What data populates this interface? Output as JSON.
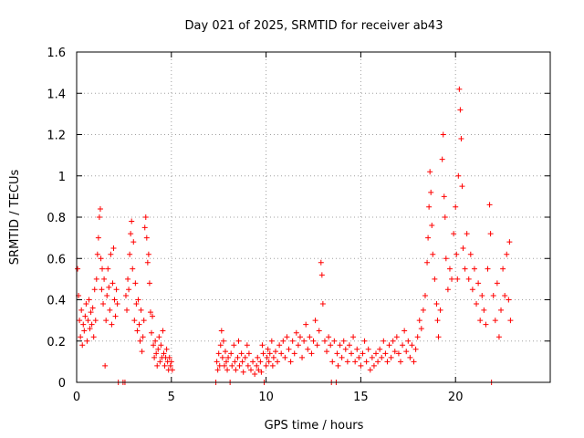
{
  "chart_data": {
    "type": "scatter",
    "title": "Day 021 of 2025, SRMTID for receiver ab43",
    "xlabel": "GPS time / hours",
    "ylabel": "SRMTID / TECUs",
    "xlim": [
      0,
      25
    ],
    "ylim": [
      0,
      1.6
    ],
    "xticks": [
      0,
      5,
      10,
      15,
      20
    ],
    "yticks": [
      0,
      0.2,
      0.4,
      0.6,
      0.8,
      1,
      1.2,
      1.4,
      1.6
    ],
    "ytick_labels": [
      "0",
      "0.2",
      "0.4",
      "0.6",
      "0.8",
      "1",
      "1.2",
      "1.4",
      "1.6"
    ],
    "grid": true,
    "marker": "+",
    "color": "#ff0000",
    "series": [
      {
        "name": "SRMTID",
        "points": [
          [
            0.05,
            0.55
          ],
          [
            0.1,
            0.42
          ],
          [
            0.15,
            0.3
          ],
          [
            0.2,
            0.22
          ],
          [
            0.25,
            0.35
          ],
          [
            0.3,
            0.18
          ],
          [
            0.35,
            0.28
          ],
          [
            0.4,
            0.25
          ],
          [
            0.45,
            0.32
          ],
          [
            0.5,
            0.38
          ],
          [
            0.55,
            0.2
          ],
          [
            0.6,
            0.3
          ],
          [
            0.65,
            0.4
          ],
          [
            0.7,
            0.26
          ],
          [
            0.75,
            0.34
          ],
          [
            0.8,
            0.28
          ],
          [
            0.85,
            0.36
          ],
          [
            0.9,
            0.22
          ],
          [
            0.95,
            0.45
          ],
          [
            1.0,
            0.3
          ],
          [
            1.05,
            0.5
          ],
          [
            1.1,
            0.62
          ],
          [
            1.15,
            0.7
          ],
          [
            1.2,
            0.8
          ],
          [
            1.25,
            0.84
          ],
          [
            1.28,
            0.6
          ],
          [
            1.32,
            0.45
          ],
          [
            1.35,
            0.55
          ],
          [
            1.4,
            0.38
          ],
          [
            1.45,
            0.5
          ],
          [
            1.5,
            0.08
          ],
          [
            1.55,
            0.3
          ],
          [
            1.6,
            0.42
          ],
          [
            1.65,
            0.55
          ],
          [
            1.7,
            0.46
          ],
          [
            1.75,
            0.35
          ],
          [
            1.8,
            0.62
          ],
          [
            1.85,
            0.28
          ],
          [
            1.9,
            0.48
          ],
          [
            1.95,
            0.65
          ],
          [
            2.0,
            0.4
          ],
          [
            2.05,
            0.32
          ],
          [
            2.1,
            0.45
          ],
          [
            2.15,
            0.38
          ],
          [
            2.2,
            0.0
          ],
          [
            2.45,
            0.0
          ],
          [
            2.55,
            0.0
          ],
          [
            2.6,
            0.42
          ],
          [
            2.65,
            0.35
          ],
          [
            2.7,
            0.5
          ],
          [
            2.75,
            0.45
          ],
          [
            2.8,
            0.62
          ],
          [
            2.85,
            0.72
          ],
          [
            2.9,
            0.78
          ],
          [
            2.95,
            0.55
          ],
          [
            3.0,
            0.68
          ],
          [
            3.05,
            0.3
          ],
          [
            3.1,
            0.48
          ],
          [
            3.15,
            0.38
          ],
          [
            3.2,
            0.25
          ],
          [
            3.25,
            0.4
          ],
          [
            3.3,
            0.28
          ],
          [
            3.35,
            0.2
          ],
          [
            3.4,
            0.35
          ],
          [
            3.45,
            0.15
          ],
          [
            3.5,
            0.22
          ],
          [
            3.55,
            0.3
          ],
          [
            3.6,
            0.75
          ],
          [
            3.65,
            0.8
          ],
          [
            3.7,
            0.7
          ],
          [
            3.75,
            0.58
          ],
          [
            3.8,
            0.62
          ],
          [
            3.85,
            0.48
          ],
          [
            3.9,
            0.34
          ],
          [
            3.95,
            0.24
          ],
          [
            4.0,
            0.32
          ],
          [
            4.05,
            0.18
          ],
          [
            4.1,
            0.12
          ],
          [
            4.15,
            0.2
          ],
          [
            4.2,
            0.14
          ],
          [
            4.25,
            0.08
          ],
          [
            4.3,
            0.16
          ],
          [
            4.35,
            0.22
          ],
          [
            4.4,
            0.1
          ],
          [
            4.45,
            0.18
          ],
          [
            4.5,
            0.12
          ],
          [
            4.55,
            0.25
          ],
          [
            4.6,
            0.14
          ],
          [
            4.65,
            0.08
          ],
          [
            4.7,
            0.12
          ],
          [
            4.75,
            0.16
          ],
          [
            4.8,
            0.1
          ],
          [
            4.85,
            0.06
          ],
          [
            4.9,
            0.12
          ],
          [
            4.95,
            0.08
          ],
          [
            5.0,
            0.1
          ],
          [
            5.05,
            0.06
          ],
          [
            7.35,
            0.0
          ],
          [
            7.4,
            0.1
          ],
          [
            7.45,
            0.06
          ],
          [
            7.5,
            0.14
          ],
          [
            7.55,
            0.08
          ],
          [
            7.6,
            0.18
          ],
          [
            7.65,
            0.25
          ],
          [
            7.7,
            0.12
          ],
          [
            7.75,
            0.2
          ],
          [
            7.8,
            0.08
          ],
          [
            7.85,
            0.15
          ],
          [
            7.9,
            0.1
          ],
          [
            7.95,
            0.06
          ],
          [
            8.0,
            0.12
          ],
          [
            8.1,
            0.0
          ],
          [
            8.15,
            0.14
          ],
          [
            8.2,
            0.08
          ],
          [
            8.3,
            0.18
          ],
          [
            8.35,
            0.1
          ],
          [
            8.4,
            0.06
          ],
          [
            8.5,
            0.12
          ],
          [
            8.55,
            0.2
          ],
          [
            8.6,
            0.08
          ],
          [
            8.7,
            0.14
          ],
          [
            8.75,
            0.1
          ],
          [
            8.8,
            0.05
          ],
          [
            8.9,
            0.12
          ],
          [
            9.0,
            0.18
          ],
          [
            9.05,
            0.08
          ],
          [
            9.1,
            0.14
          ],
          [
            9.2,
            0.06
          ],
          [
            9.3,
            0.1
          ],
          [
            9.4,
            0.04
          ],
          [
            9.5,
            0.08
          ],
          [
            9.55,
            0.12
          ],
          [
            9.6,
            0.06
          ],
          [
            9.7,
            0.1
          ],
          [
            9.75,
            0.05
          ],
          [
            9.8,
            0.18
          ],
          [
            9.85,
            0.14
          ],
          [
            9.9,
            0.0
          ],
          [
            10.0,
            0.08
          ],
          [
            10.05,
            0.12
          ],
          [
            10.1,
            0.16
          ],
          [
            10.15,
            0.1
          ],
          [
            10.2,
            0.14
          ],
          [
            10.3,
            0.2
          ],
          [
            10.35,
            0.08
          ],
          [
            10.4,
            0.12
          ],
          [
            10.5,
            0.15
          ],
          [
            10.6,
            0.1
          ],
          [
            10.7,
            0.18
          ],
          [
            10.8,
            0.14
          ],
          [
            10.9,
            0.2
          ],
          [
            11.0,
            0.12
          ],
          [
            11.1,
            0.22
          ],
          [
            11.2,
            0.16
          ],
          [
            11.3,
            0.1
          ],
          [
            11.4,
            0.2
          ],
          [
            11.5,
            0.14
          ],
          [
            11.6,
            0.24
          ],
          [
            11.7,
            0.18
          ],
          [
            11.8,
            0.22
          ],
          [
            11.9,
            0.12
          ],
          [
            12.0,
            0.2
          ],
          [
            12.1,
            0.28
          ],
          [
            12.2,
            0.16
          ],
          [
            12.3,
            0.22
          ],
          [
            12.4,
            0.14
          ],
          [
            12.5,
            0.2
          ],
          [
            12.6,
            0.3
          ],
          [
            12.7,
            0.18
          ],
          [
            12.8,
            0.25
          ],
          [
            12.9,
            0.58
          ],
          [
            12.95,
            0.52
          ],
          [
            13.0,
            0.38
          ],
          [
            13.1,
            0.2
          ],
          [
            13.2,
            0.15
          ],
          [
            13.3,
            0.22
          ],
          [
            13.4,
            0.18
          ],
          [
            13.45,
            0.0
          ],
          [
            13.5,
            0.1
          ],
          [
            13.6,
            0.2
          ],
          [
            13.7,
            0.0
          ],
          [
            13.75,
            0.14
          ],
          [
            13.8,
            0.08
          ],
          [
            13.9,
            0.18
          ],
          [
            14.0,
            0.12
          ],
          [
            14.1,
            0.2
          ],
          [
            14.2,
            0.16
          ],
          [
            14.3,
            0.1
          ],
          [
            14.4,
            0.18
          ],
          [
            14.5,
            0.14
          ],
          [
            14.6,
            0.22
          ],
          [
            14.7,
            0.1
          ],
          [
            14.8,
            0.16
          ],
          [
            14.9,
            0.12
          ],
          [
            15.0,
            0.08
          ],
          [
            15.1,
            0.14
          ],
          [
            15.2,
            0.2
          ],
          [
            15.3,
            0.1
          ],
          [
            15.4,
            0.16
          ],
          [
            15.5,
            0.06
          ],
          [
            15.6,
            0.12
          ],
          [
            15.7,
            0.08
          ],
          [
            15.8,
            0.14
          ],
          [
            15.9,
            0.1
          ],
          [
            16.0,
            0.16
          ],
          [
            16.1,
            0.12
          ],
          [
            16.2,
            0.2
          ],
          [
            16.3,
            0.14
          ],
          [
            16.4,
            0.1
          ],
          [
            16.5,
            0.18
          ],
          [
            16.6,
            0.12
          ],
          [
            16.7,
            0.2
          ],
          [
            16.8,
            0.15
          ],
          [
            16.9,
            0.22
          ],
          [
            17.0,
            0.14
          ],
          [
            17.1,
            0.1
          ],
          [
            17.2,
            0.18
          ],
          [
            17.3,
            0.25
          ],
          [
            17.4,
            0.15
          ],
          [
            17.5,
            0.2
          ],
          [
            17.6,
            0.12
          ],
          [
            17.7,
            0.18
          ],
          [
            17.8,
            0.1
          ],
          [
            17.9,
            0.16
          ],
          [
            18.0,
            0.22
          ],
          [
            18.1,
            0.3
          ],
          [
            18.2,
            0.26
          ],
          [
            18.3,
            0.35
          ],
          [
            18.4,
            0.42
          ],
          [
            18.5,
            0.58
          ],
          [
            18.55,
            0.7
          ],
          [
            18.6,
            0.85
          ],
          [
            18.65,
            1.02
          ],
          [
            18.7,
            0.92
          ],
          [
            18.75,
            0.76
          ],
          [
            18.8,
            0.62
          ],
          [
            18.9,
            0.5
          ],
          [
            19.0,
            0.38
          ],
          [
            19.05,
            0.3
          ],
          [
            19.1,
            0.22
          ],
          [
            19.2,
            0.35
          ],
          [
            19.3,
            1.08
          ],
          [
            19.35,
            1.2
          ],
          [
            19.4,
            0.9
          ],
          [
            19.45,
            0.8
          ],
          [
            19.5,
            0.6
          ],
          [
            19.6,
            0.45
          ],
          [
            19.7,
            0.55
          ],
          [
            19.8,
            0.5
          ],
          [
            19.9,
            0.72
          ],
          [
            20.0,
            0.85
          ],
          [
            20.05,
            0.62
          ],
          [
            20.1,
            0.5
          ],
          [
            20.15,
            1.0
          ],
          [
            20.2,
            1.42
          ],
          [
            20.25,
            1.32
          ],
          [
            20.3,
            1.18
          ],
          [
            20.35,
            0.95
          ],
          [
            20.4,
            0.65
          ],
          [
            20.5,
            0.55
          ],
          [
            20.6,
            0.72
          ],
          [
            20.7,
            0.5
          ],
          [
            20.8,
            0.62
          ],
          [
            20.9,
            0.45
          ],
          [
            21.0,
            0.55
          ],
          [
            21.1,
            0.38
          ],
          [
            21.2,
            0.48
          ],
          [
            21.3,
            0.3
          ],
          [
            21.4,
            0.42
          ],
          [
            21.5,
            0.35
          ],
          [
            21.6,
            0.28
          ],
          [
            21.7,
            0.55
          ],
          [
            21.8,
            0.86
          ],
          [
            21.85,
            0.72
          ],
          [
            21.9,
            0.0
          ],
          [
            22.0,
            0.42
          ],
          [
            22.1,
            0.3
          ],
          [
            22.2,
            0.48
          ],
          [
            22.3,
            0.22
          ],
          [
            22.4,
            0.35
          ],
          [
            22.5,
            0.55
          ],
          [
            22.6,
            0.42
          ],
          [
            22.7,
            0.62
          ],
          [
            22.8,
            0.4
          ],
          [
            22.85,
            0.68
          ],
          [
            22.9,
            0.3
          ]
        ]
      }
    ]
  }
}
